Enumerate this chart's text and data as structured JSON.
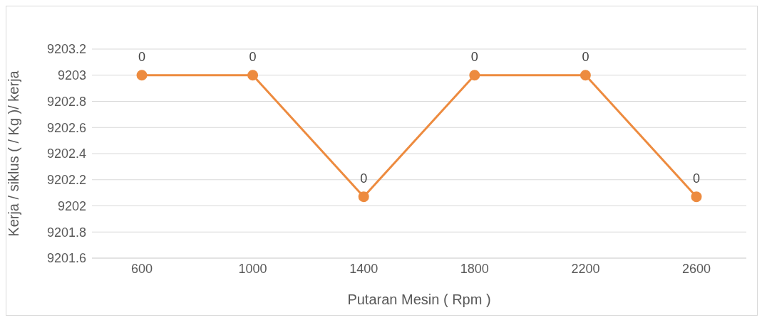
{
  "chart_data": {
    "type": "line",
    "xlabel": "Putaran Mesin ( Rpm )",
    "ylabel": "Kerja / siklus ( / Kg )/ kerja",
    "categories": [
      "600",
      "1000",
      "1400",
      "1800",
      "2200",
      "2600"
    ],
    "series": [
      {
        "color": "#ed8b3f",
        "values": [
          9203,
          9203,
          9202.07,
          9203,
          9203,
          9202.07
        ]
      }
    ],
    "annotations": [
      {
        "text": "0",
        "x": "600",
        "y": 9203
      },
      {
        "text": "0",
        "x": "1000",
        "y": 9203
      },
      {
        "text": "0",
        "x": "1400",
        "y": 9202.07
      },
      {
        "text": "0",
        "x": "1800",
        "y": 9203
      },
      {
        "text": "0",
        "x": "2200",
        "y": 9203
      },
      {
        "text": "0",
        "x": "2600",
        "y": 9202.07
      }
    ],
    "ylim": [
      9201.6,
      9203.2
    ],
    "yticks": [
      9201.6,
      9201.8,
      9202,
      9202.2,
      9202.4,
      9202.6,
      9202.8,
      9203,
      9203.2
    ],
    "grid": "y",
    "legend": false,
    "marker": "circle",
    "line_style": "solid"
  }
}
